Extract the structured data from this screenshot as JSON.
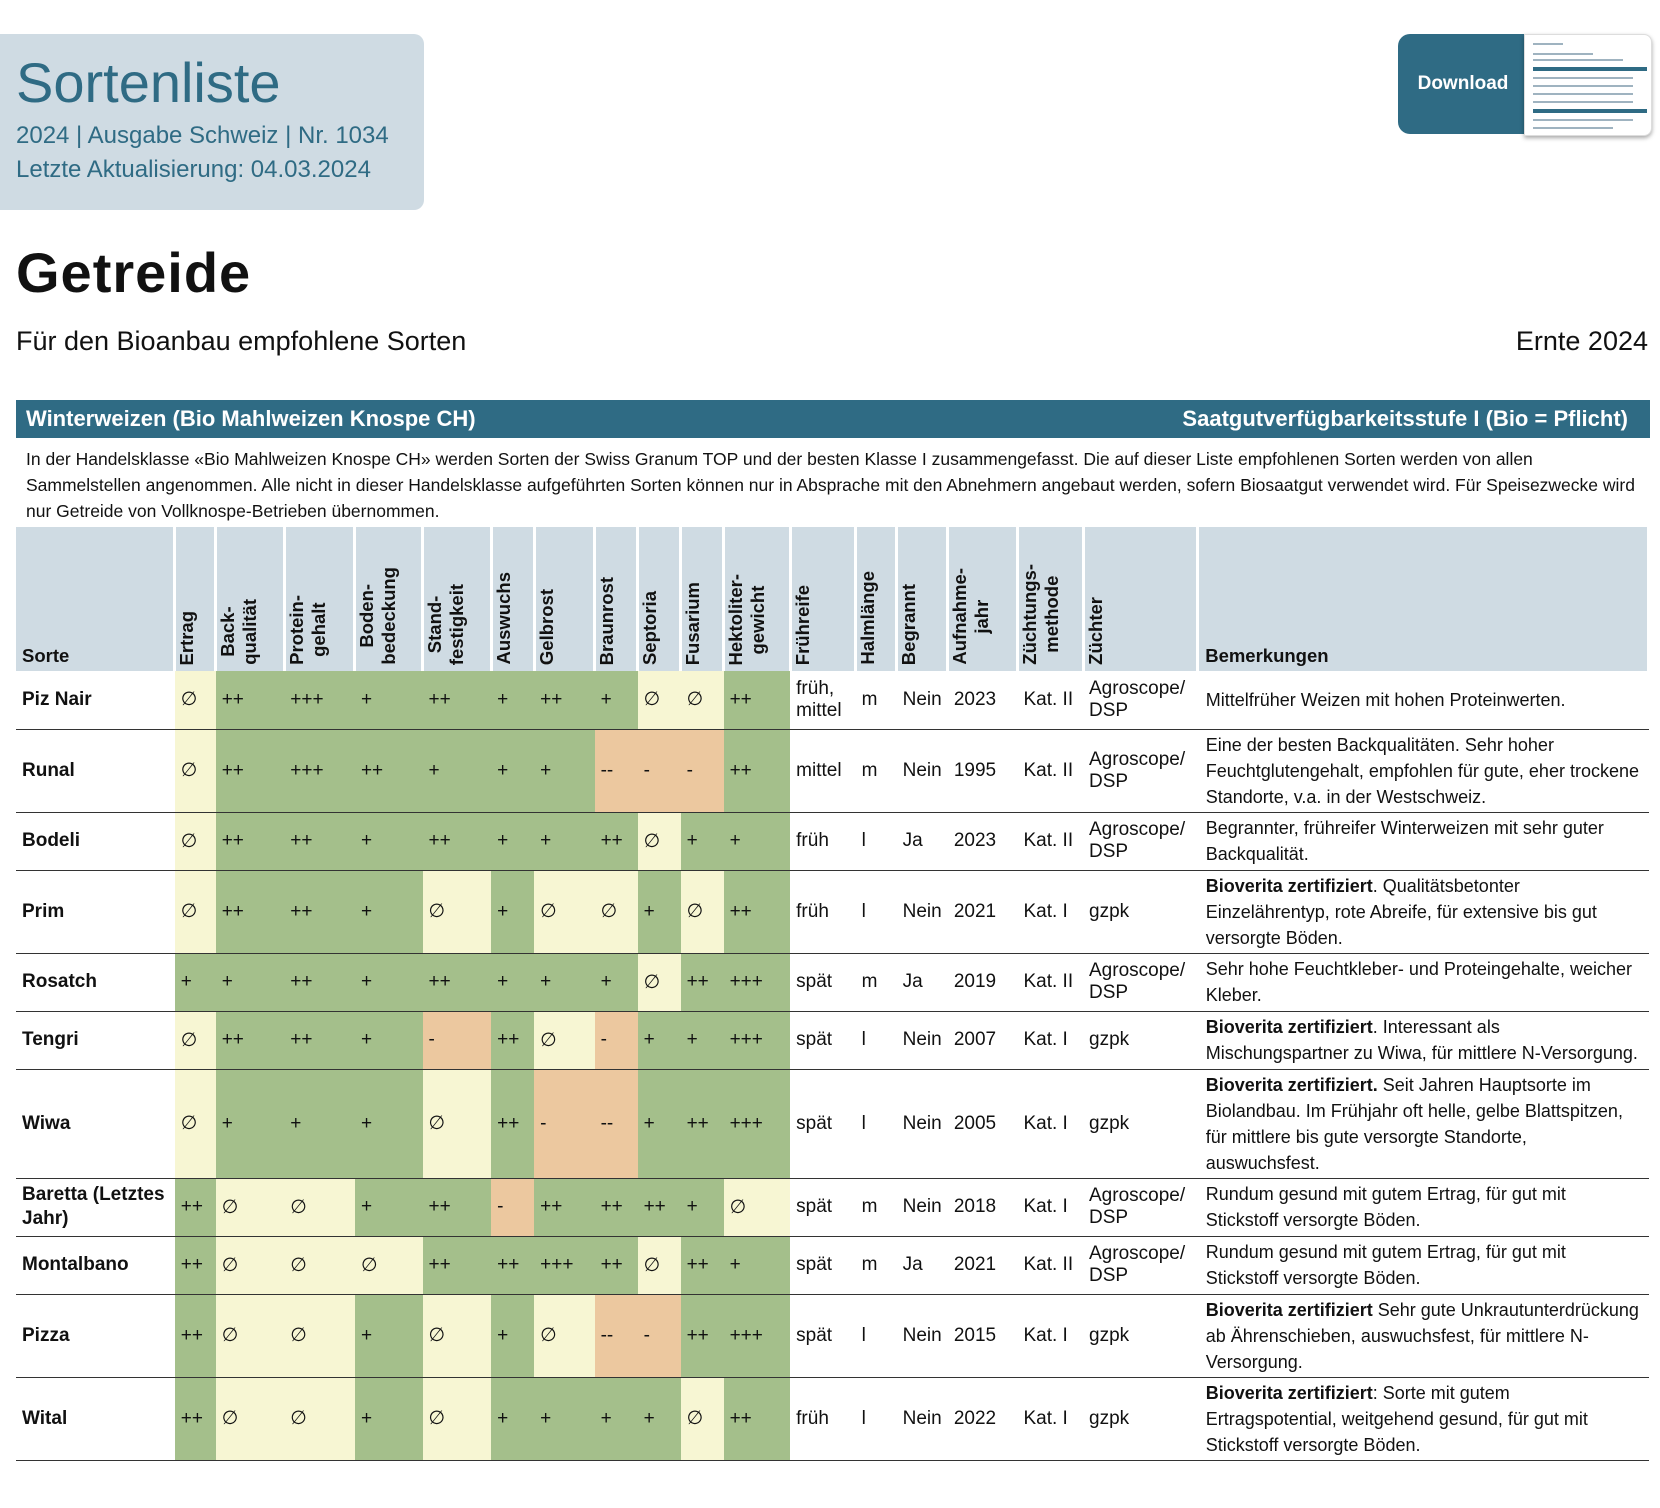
{
  "header": {
    "title": "Sortenliste",
    "subtitle1": "2024 | Ausgabe Schweiz | Nr. 1034",
    "subtitle2": "Letzte Aktualisierung: 04.03.2024",
    "download_label": "Download"
  },
  "page": {
    "heading": "Getreide",
    "lead": "Für den Bioanbau empfohlene Sorten",
    "harvest": "Ernte 2024"
  },
  "section": {
    "title": "Winterweizen (Bio Mahlweizen Knospe CH)",
    "level": "Saatgutverfügbarkeitsstufe I (Bio = Pflicht)",
    "intro": "In der Handelsklasse «Bio Mahlweizen Knospe CH» werden Sorten der Swiss Granum TOP und der besten Klasse I zusammengefasst. Die auf dieser Liste empfohlenen Sorten werden von allen Sammelstellen angenommen. Alle nicht in dieser Handelsklasse aufgeführten Sorten können nur in Absprache mit den Abnehmern angebaut werden, sofern Biosaatgut verwendet wird. Für Speisezwecke wird nur Getreide von Vollknospe-Betrieben übernommen."
  },
  "colors": {
    "good": "#a4bf8b",
    "neutral": "#f7f6d3",
    "bad": "#ecc89f",
    "accent": "#2f6b84",
    "header_bg": "#cfdbe3"
  },
  "columns": [
    "Sorte",
    "Ertrag",
    "Back-\nqualität",
    "Protein-\ngehalt",
    "Boden-\nbedeckung",
    "Stand-\nfestigkeit",
    "Auswuchs",
    "Gelbrost",
    "Braunrost",
    "Septoria",
    "Fusarium",
    "Hektoliter-\ngewicht",
    "Frühreife",
    "Halmlänge",
    "Begrannt",
    "Aufnahme-\njahr",
    "Züchtungs-\nmethode",
    "Züchter",
    "Bemerkungen"
  ],
  "rows": [
    {
      "sorte": "Piz Nair",
      "ratings": [
        "∅",
        "++",
        "+++",
        "+",
        "++",
        "+",
        "++",
        "+",
        "∅",
        "∅",
        "++"
      ],
      "shades": [
        "y",
        "g",
        "g",
        "g",
        "g",
        "g",
        "g",
        "g",
        "y",
        "y",
        "g"
      ],
      "fruehreife": "früh, mittel",
      "halm": "m",
      "begrannt": "Nein",
      "jahr": "2023",
      "methode": "Kat. II",
      "zuechter": "Agroscope/ DSP",
      "rem_bold": "",
      "rem_text": "Mittelfrüher Weizen mit hohen Proteinwerten."
    },
    {
      "sorte": "Runal",
      "ratings": [
        "∅",
        "++",
        "+++",
        "++",
        "+",
        "+",
        "+",
        "--",
        "-",
        "-",
        "++"
      ],
      "shades": [
        "y",
        "g",
        "g",
        "g",
        "g",
        "g",
        "g",
        "o",
        "o",
        "o",
        "g"
      ],
      "fruehreife": "mittel",
      "halm": "m",
      "begrannt": "Nein",
      "jahr": "1995",
      "methode": "Kat. II",
      "zuechter": "Agroscope/ DSP",
      "rem_bold": "",
      "rem_text": "Eine der besten Backqualitäten. Sehr hoher Feuchtglutengehalt, empfohlen für gute, eher trockene Standorte, v.a. in der Westschweiz."
    },
    {
      "sorte": "Bodeli",
      "ratings": [
        "∅",
        "++",
        "++",
        "+",
        "++",
        "+",
        "+",
        "++",
        "∅",
        "+",
        "+"
      ],
      "shades": [
        "y",
        "g",
        "g",
        "g",
        "g",
        "g",
        "g",
        "g",
        "y",
        "g",
        "g"
      ],
      "fruehreife": "früh",
      "halm": "l",
      "begrannt": "Ja",
      "jahr": "2023",
      "methode": "Kat. II",
      "zuechter": "Agroscope/ DSP",
      "rem_bold": "",
      "rem_text": "Begrannter, frühreifer Winterweizen mit sehr guter Backqualität."
    },
    {
      "sorte": "Prim",
      "ratings": [
        "∅",
        "++",
        "++",
        "+",
        "∅",
        "+",
        "∅",
        "∅",
        "+",
        "∅",
        "++"
      ],
      "shades": [
        "y",
        "g",
        "g",
        "g",
        "y",
        "g",
        "y",
        "y",
        "g",
        "y",
        "g"
      ],
      "fruehreife": "früh",
      "halm": "l",
      "begrannt": "Nein",
      "jahr": "2021",
      "methode": "Kat. I",
      "zuechter": "gzpk",
      "rem_bold": "Bioverita zertifiziert",
      "rem_text": ". Qualitätsbetonter Einzelährentyp, rote Abreife, für extensive bis gut versorgte Böden."
    },
    {
      "sorte": "Rosatch",
      "ratings": [
        "+",
        "+",
        "++",
        "+",
        "++",
        "+",
        "+",
        "+",
        "∅",
        "++",
        "+++"
      ],
      "shades": [
        "g",
        "g",
        "g",
        "g",
        "g",
        "g",
        "g",
        "g",
        "y",
        "g",
        "g"
      ],
      "fruehreife": "spät",
      "halm": "m",
      "begrannt": "Ja",
      "jahr": "2019",
      "methode": "Kat. II",
      "zuechter": "Agroscope/ DSP",
      "rem_bold": "",
      "rem_text": "Sehr hohe Feuchtkleber- und Proteingehalte, weicher Kleber."
    },
    {
      "sorte": "Tengri",
      "ratings": [
        "∅",
        "++",
        "++",
        "+",
        "-",
        "++",
        "∅",
        "-",
        "+",
        "+",
        "+++"
      ],
      "shades": [
        "y",
        "g",
        "g",
        "g",
        "o",
        "g",
        "y",
        "o",
        "g",
        "g",
        "g"
      ],
      "fruehreife": "spät",
      "halm": "l",
      "begrannt": "Nein",
      "jahr": "2007",
      "methode": "Kat. I",
      "zuechter": "gzpk",
      "rem_bold": "Bioverita zertifiziert",
      "rem_text": ". Interessant als Mischungspartner zu Wiwa, für mittlere N-Versorgung."
    },
    {
      "sorte": "Wiwa",
      "ratings": [
        "∅",
        "+",
        "+",
        "+",
        "∅",
        "++",
        "-",
        "--",
        "+",
        "++",
        "+++"
      ],
      "shades": [
        "y",
        "g",
        "g",
        "g",
        "y",
        "g",
        "o",
        "o",
        "g",
        "g",
        "g"
      ],
      "fruehreife": "spät",
      "halm": "l",
      "begrannt": "Nein",
      "jahr": "2005",
      "methode": "Kat. I",
      "zuechter": "gzpk",
      "rem_bold": "Bioverita zertifiziert.",
      "rem_text": " Seit Jahren Hauptsorte im Biolandbau. Im Frühjahr oft helle, gelbe Blattspitzen, für mittlere bis gute versorgte Standorte, auswuchsfest."
    },
    {
      "sorte": "Baretta (Letztes Jahr)",
      "ratings": [
        "++",
        "∅",
        "∅",
        "+",
        "++",
        "-",
        "++",
        "++",
        "++",
        "+",
        "∅"
      ],
      "shades": [
        "g",
        "y",
        "y",
        "g",
        "g",
        "o",
        "g",
        "g",
        "g",
        "g",
        "y"
      ],
      "fruehreife": "spät",
      "halm": "m",
      "begrannt": "Nein",
      "jahr": "2018",
      "methode": "Kat. I",
      "zuechter": "Agroscope/ DSP",
      "rem_bold": "",
      "rem_text": "Rundum gesund mit gutem Ertrag, für gut mit Stickstoff versorgte Böden."
    },
    {
      "sorte": "Montalbano",
      "ratings": [
        "++",
        "∅",
        "∅",
        "∅",
        "++",
        "++",
        "+++",
        "++",
        "∅",
        "++",
        "+"
      ],
      "shades": [
        "g",
        "y",
        "y",
        "y",
        "g",
        "g",
        "g",
        "g",
        "y",
        "g",
        "g"
      ],
      "fruehreife": "spät",
      "halm": "m",
      "begrannt": "Ja",
      "jahr": "2021",
      "methode": "Kat. II",
      "zuechter": "Agroscope/ DSP",
      "rem_bold": "",
      "rem_text": "Rundum gesund mit gutem Ertrag, für gut mit Stickstoff versorgte Böden."
    },
    {
      "sorte": "Pizza",
      "ratings": [
        "++",
        "∅",
        "∅",
        "+",
        "∅",
        "+",
        "∅",
        "--",
        "-",
        "++",
        "+++"
      ],
      "shades": [
        "g",
        "y",
        "y",
        "g",
        "y",
        "g",
        "y",
        "o",
        "o",
        "g",
        "g"
      ],
      "fruehreife": "spät",
      "halm": "l",
      "begrannt": "Nein",
      "jahr": "2015",
      "methode": "Kat. I",
      "zuechter": "gzpk",
      "rem_bold": "Bioverita zertifiziert",
      "rem_text": " Sehr gute Unkrautunterdrückung ab Ährenschieben, auswuchsfest, für mittlere N-Versorgung."
    },
    {
      "sorte": "Wital",
      "ratings": [
        "++",
        "∅",
        "∅",
        "+",
        "∅",
        "+",
        "+",
        "+",
        "+",
        "∅",
        "++"
      ],
      "shades": [
        "g",
        "y",
        "y",
        "g",
        "y",
        "g",
        "g",
        "g",
        "g",
        "y",
        "g"
      ],
      "fruehreife": "früh",
      "halm": "l",
      "begrannt": "Nein",
      "jahr": "2022",
      "methode": "Kat. I",
      "zuechter": "gzpk",
      "rem_bold": "Bioverita zertifiziert",
      "rem_text": ": Sorte mit gutem Ertragspotential, weitgehend gesund, für gut mit Stickstoff versorgte Böden."
    }
  ]
}
